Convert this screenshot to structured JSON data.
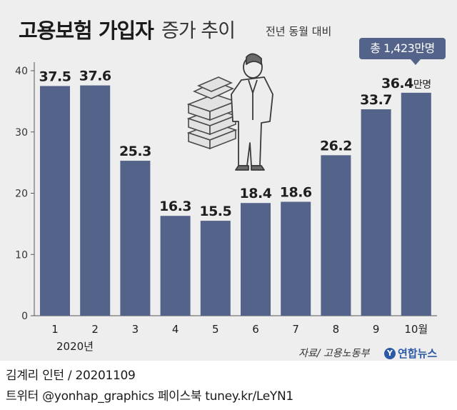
{
  "header": {
    "title_bold": "고용보험 가입자",
    "title_light": "증가 추이",
    "subtitle": "전년 동월 대비"
  },
  "callout": {
    "text": "총 1,423만명"
  },
  "chart_data": {
    "type": "bar",
    "categories": [
      "1",
      "2",
      "3",
      "4",
      "5",
      "6",
      "7",
      "8",
      "9",
      "10월"
    ],
    "category_sublabel": "2020년",
    "values": [
      37.5,
      37.6,
      25.3,
      16.3,
      15.5,
      18.4,
      18.6,
      26.2,
      33.7,
      36.4
    ],
    "value_labels": [
      "37.5",
      "37.6",
      "25.3",
      "16.3",
      "15.5",
      "18.4",
      "18.6",
      "26.2",
      "33.7",
      "36.4"
    ],
    "last_value_unit": "만명",
    "yticks": [
      "0",
      "10",
      "20",
      "30",
      "40"
    ],
    "ylim": [
      0,
      40
    ],
    "grid": false,
    "colors": {
      "bar": "#54638a",
      "background": "#eeeeee"
    }
  },
  "source": "자료/ 고용노동부",
  "logo": {
    "mark": "Y",
    "name": "연합뉴스"
  },
  "footer": {
    "author": "김계리 인턴 / 20201109",
    "sns": "트위터 @yonhap_graphics  페이스북 tuney.kr/LeYN1"
  }
}
